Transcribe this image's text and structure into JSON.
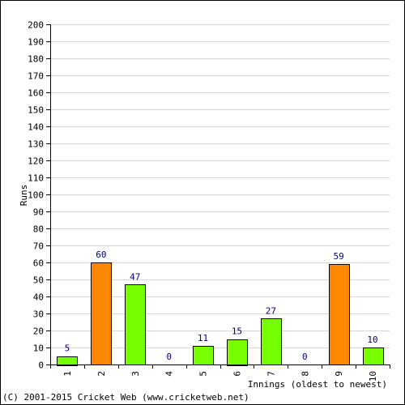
{
  "chart_data": {
    "type": "bar",
    "categories": [
      "1",
      "2",
      "3",
      "4",
      "5",
      "6",
      "7",
      "8",
      "9",
      "10"
    ],
    "values": [
      5,
      60,
      47,
      0,
      11,
      15,
      27,
      0,
      59,
      10
    ],
    "bar_colors": [
      "#77ff00",
      "#ff8800",
      "#77ff00",
      "#77ff00",
      "#77ff00",
      "#77ff00",
      "#77ff00",
      "#77ff00",
      "#ff8800",
      "#77ff00"
    ],
    "xlabel": "Innings (oldest to newest)",
    "ylabel": "Runs",
    "ylim": [
      0,
      200
    ],
    "ytick_step": 10,
    "grid": true,
    "value_label_color": "#000080",
    "grid_color": "#d8d8d8"
  },
  "footer": {
    "copyright": "(C) 2001-2015 Cricket Web (www.cricketweb.net)"
  }
}
